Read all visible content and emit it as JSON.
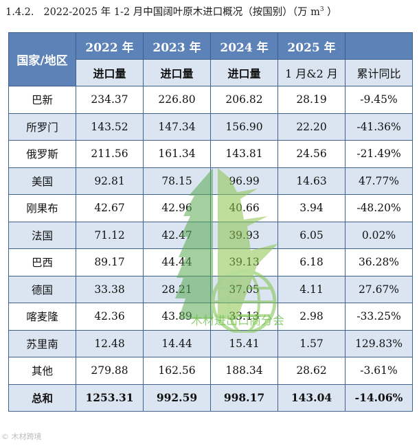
{
  "caption": {
    "number": "1.4.2.",
    "title": "2022-2025 年 1-2 月中国阔叶原木进口概况（按国别）（万 m",
    "sup": "3",
    "close": " ）"
  },
  "watermark_text": "木材进出口商分会",
  "bottom_mark": "© 木材跨境",
  "colors": {
    "header_blue": "#5c82b8",
    "light_blue": "#dbe5f1",
    "border": "#3d5f8e",
    "watermark_green": "#6fbf4a"
  },
  "table": {
    "region_header": "国家/地区",
    "years": [
      "2022 年",
      "2023 年",
      "2024 年",
      "2025 年"
    ],
    "subheaders": [
      "进口量",
      "进口量",
      "进口量",
      "1 月&2 月",
      "累计同比"
    ],
    "rows": [
      {
        "name": "巴新",
        "values": [
          "234.37",
          "226.80",
          "206.82",
          "28.19",
          "-9.45%"
        ]
      },
      {
        "name": "所罗门",
        "values": [
          "143.52",
          "147.34",
          "156.90",
          "22.20",
          "-41.36%"
        ]
      },
      {
        "name": "俄罗斯",
        "values": [
          "211.56",
          "161.34",
          "143.81",
          "24.56",
          "-21.49%"
        ]
      },
      {
        "name": "美国",
        "values": [
          "92.81",
          "78.15",
          "96.99",
          "14.63",
          "47.77%"
        ]
      },
      {
        "name": "刚果布",
        "values": [
          "42.67",
          "42.96",
          "40.66",
          "3.94",
          "-48.20%"
        ]
      },
      {
        "name": "法国",
        "values": [
          "71.12",
          "42.47",
          "39.93",
          "6.05",
          "0.02%"
        ]
      },
      {
        "name": "巴西",
        "values": [
          "89.17",
          "44.44",
          "39.13",
          "6.18",
          "36.28%"
        ]
      },
      {
        "name": "德国",
        "values": [
          "33.38",
          "28.21",
          "37.05",
          "4.11",
          "27.67%"
        ]
      },
      {
        "name": "喀麦隆",
        "values": [
          "42.36",
          "43.89",
          "33.13",
          "2.98",
          "-33.25%"
        ]
      },
      {
        "name": "苏里南",
        "values": [
          "12.48",
          "14.44",
          "15.41",
          "1.57",
          "129.83%"
        ]
      },
      {
        "name": "其他",
        "values": [
          "279.88",
          "162.56",
          "188.34",
          "28.62",
          "-3.61%"
        ]
      }
    ],
    "total": {
      "name": "总和",
      "values": [
        "1253.31",
        "992.59",
        "998.17",
        "143.04",
        "-14.06%"
      ]
    }
  }
}
